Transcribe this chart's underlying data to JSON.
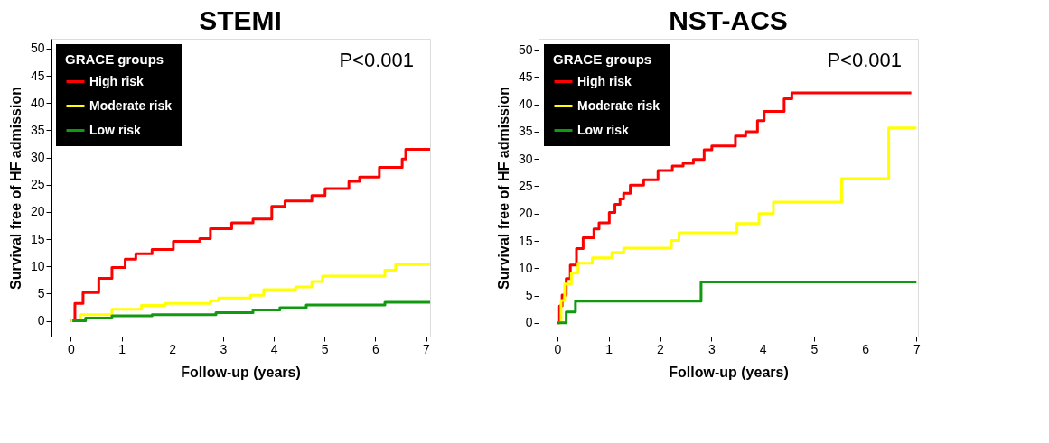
{
  "chart_data": [
    {
      "type": "step",
      "title": "STEMI",
      "xlabel": "Follow-up (years)",
      "ylabel": "Survival free of HF admission",
      "legend_title": "GRACE groups",
      "annotations": [
        "P<0.001"
      ],
      "xlim": [
        -0.4,
        7.08
      ],
      "ylim": [
        -2.9,
        51.8
      ],
      "xticks": [
        0,
        1,
        2,
        3,
        4,
        5,
        6,
        7
      ],
      "yticks": [
        0,
        5,
        10,
        15,
        20,
        25,
        30,
        35,
        40,
        45,
        50
      ],
      "legend": "top left",
      "grid": false,
      "series": [
        {
          "name": "High risk",
          "color": "#ff0000",
          "x": [
            0,
            0.08,
            0.24,
            0.55,
            0.81,
            1.07,
            1.28,
            1.6,
            2.02,
            2.54,
            2.75,
            3.17,
            3.59,
            3.96,
            4.22,
            4.75,
            5.01,
            5.48,
            5.69,
            6.08,
            6.53,
            6.6,
            7.08
          ],
          "values": [
            0,
            3.2,
            5.2,
            7.8,
            9.8,
            11.3,
            12.3,
            13.1,
            14.6,
            15.1,
            16.9,
            18,
            18.7,
            21,
            22,
            23,
            24.3,
            25.6,
            26.4,
            28.2,
            29.7,
            31.5,
            31.5
          ]
        },
        {
          "name": "Moderate risk",
          "color": "#ffff00",
          "x": [
            0,
            0.18,
            0.81,
            1.39,
            1.86,
            2.75,
            2.91,
            3.54,
            3.8,
            4.43,
            4.75,
            4.96,
            6.19,
            6.4,
            7.08
          ],
          "values": [
            0,
            1.1,
            2.1,
            2.8,
            3.2,
            3.7,
            4.2,
            4.7,
            5.7,
            6.2,
            7.2,
            8.2,
            9.3,
            10.3,
            10.3
          ]
        },
        {
          "name": "Low risk",
          "color": "#119911",
          "x": [
            0.03,
            0.29,
            0.81,
            1.6,
            2.86,
            3.59,
            4.12,
            4.64,
            6.19,
            7.08
          ],
          "values": [
            0,
            0.5,
            0.9,
            1.1,
            1.5,
            2.0,
            2.4,
            2.9,
            3.4,
            3.4
          ]
        }
      ]
    },
    {
      "type": "step",
      "title": "NST-ACS",
      "xlabel": "Follow-up (years)",
      "ylabel": "Survival free of HF admission",
      "legend_title": "GRACE groups",
      "annotations": [
        "P<0.001"
      ],
      "xlim": [
        -0.37,
        7.03
      ],
      "ylim": [
        -2.5,
        52
      ],
      "xticks": [
        0,
        1,
        2,
        3,
        4,
        5,
        6,
        7
      ],
      "yticks": [
        0,
        5,
        10,
        15,
        20,
        25,
        30,
        35,
        40,
        45,
        50
      ],
      "legend": "top left",
      "grid": false,
      "series": [
        {
          "name": "High risk",
          "color": "#ff0000",
          "x": [
            0,
            0.04,
            0.09,
            0.17,
            0.25,
            0.37,
            0.5,
            0.71,
            0.81,
            1.01,
            1.12,
            1.22,
            1.29,
            1.42,
            1.68,
            1.96,
            2.24,
            2.45,
            2.65,
            2.86,
            3.01,
            3.47,
            3.67,
            3.9,
            4.03,
            4.42,
            4.57,
            6.9
          ],
          "values": [
            0,
            3.1,
            5.1,
            8.1,
            10.6,
            13.6,
            15.6,
            17.2,
            18.3,
            20.2,
            21.7,
            22.7,
            23.7,
            25.2,
            26.2,
            27.9,
            28.7,
            29.2,
            29.9,
            31.7,
            32.4,
            34.2,
            35,
            37,
            38.7,
            41,
            42.1,
            42.1
          ]
        },
        {
          "name": "Moderate risk",
          "color": "#ffff00",
          "x": [
            0,
            0.07,
            0.14,
            0.27,
            0.4,
            0.68,
            1.06,
            1.29,
            2.22,
            2.37,
            3.5,
            3.93,
            4.21,
            5.54,
            6.46,
            7.0
          ],
          "values": [
            0,
            4.1,
            7.1,
            9.1,
            10.9,
            11.9,
            12.9,
            13.7,
            15.1,
            16.5,
            18.2,
            20,
            22.1,
            26.4,
            35.7,
            35.7
          ]
        },
        {
          "name": "Low risk",
          "color": "#119911",
          "x": [
            0,
            0.17,
            0.35,
            2.8,
            7.0
          ],
          "values": [
            0,
            2.0,
            4.0,
            7.5,
            7.5
          ]
        }
      ]
    }
  ]
}
